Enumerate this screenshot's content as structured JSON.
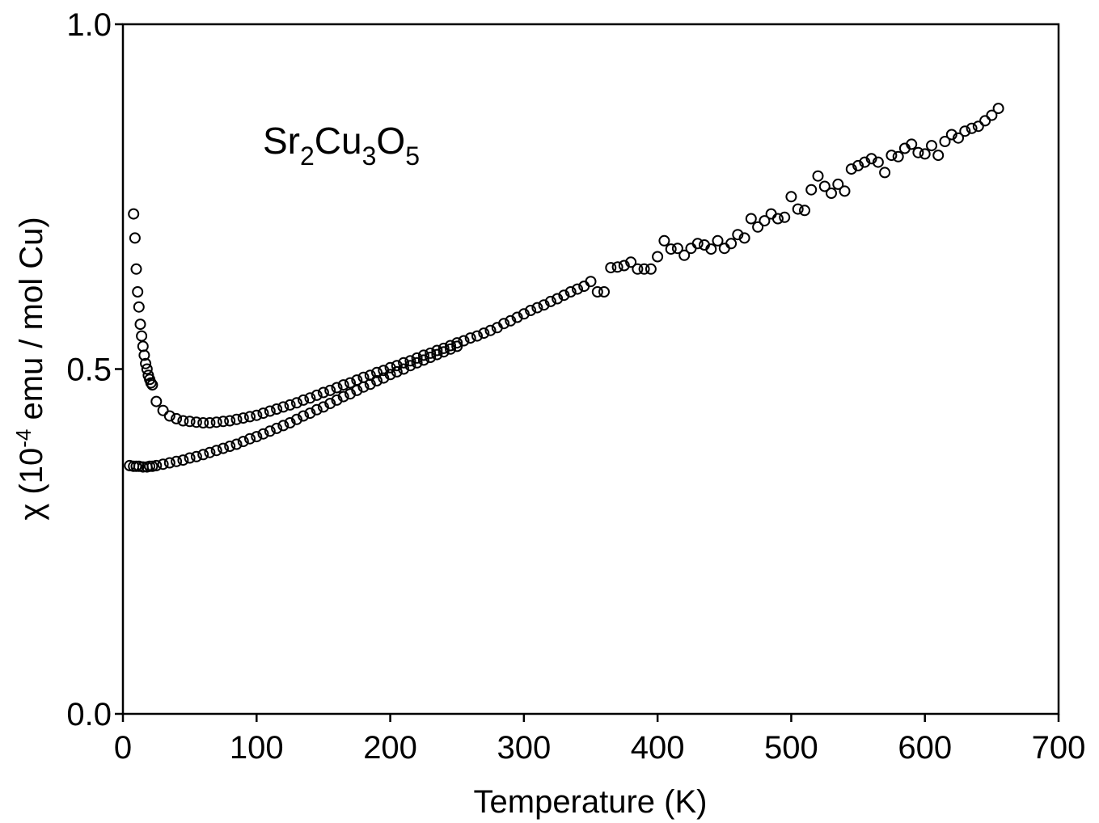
{
  "chart_data": {
    "type": "scatter",
    "title": "",
    "annotation": {
      "parts": [
        "Sr",
        "2",
        "Cu",
        "3",
        "O",
        "5"
      ]
    },
    "xlabel": "Temperature (K)",
    "ylabel": "χ (10-4 emu / mol Cu)",
    "ylabel_parts": {
      "prefix": "χ (10",
      "sup": "-4",
      "suffix": " emu / mol Cu)"
    },
    "xlim": [
      0,
      700
    ],
    "ylim": [
      0,
      1.0
    ],
    "xticks": [
      0,
      100,
      200,
      300,
      400,
      500,
      600,
      700
    ],
    "xtick_labels": [
      "0",
      "100",
      "200",
      "300",
      "400",
      "500",
      "600",
      "700"
    ],
    "yticks": [
      0.0,
      0.5,
      1.0
    ],
    "ytick_labels": [
      "0.0",
      "0.5",
      "1.0"
    ],
    "grid": false,
    "legend": "none",
    "marker": "open-circle",
    "series": [
      {
        "x": [
          8,
          9,
          10,
          11,
          12,
          13,
          14,
          15,
          16,
          17,
          18,
          19,
          20,
          21,
          22,
          25,
          30,
          35,
          40,
          45,
          50,
          55,
          60,
          65,
          70,
          75,
          80,
          85,
          90,
          95,
          100,
          105,
          110,
          115,
          120,
          125,
          130,
          135,
          140,
          145,
          150,
          155,
          160,
          165,
          170,
          175,
          180,
          185,
          190,
          195,
          200,
          205,
          210,
          215,
          220,
          225,
          230,
          235,
          240,
          245,
          250,
          255,
          260,
          265,
          270,
          275,
          280,
          285,
          290,
          295,
          300,
          305,
          310,
          315,
          320,
          325,
          330,
          335,
          340,
          345,
          350,
          355,
          360,
          365,
          370,
          375,
          380,
          385,
          390,
          395,
          400,
          405,
          410,
          415,
          420,
          425,
          430,
          435,
          440,
          445,
          450,
          455,
          460,
          465,
          470,
          475,
          480,
          485,
          490,
          495,
          500,
          505,
          510,
          515,
          520,
          525,
          530,
          535,
          540,
          545,
          550,
          555,
          560,
          565,
          570,
          575,
          580,
          585,
          590,
          595,
          600,
          605,
          610,
          615,
          620,
          625,
          630,
          635,
          640,
          645,
          650,
          655
        ],
        "y": [
          0.725,
          0.69,
          0.645,
          0.612,
          0.59,
          0.565,
          0.548,
          0.533,
          0.52,
          0.508,
          0.5,
          0.491,
          0.485,
          0.48,
          0.477,
          0.453,
          0.44,
          0.432,
          0.428,
          0.425,
          0.424,
          0.423,
          0.422,
          0.422,
          0.423,
          0.424,
          0.425,
          0.427,
          0.429,
          0.431,
          0.433,
          0.436,
          0.439,
          0.442,
          0.445,
          0.448,
          0.451,
          0.455,
          0.458,
          0.462,
          0.466,
          0.469,
          0.473,
          0.477,
          0.48,
          0.484,
          0.488,
          0.491,
          0.495,
          0.498,
          0.502,
          0.505,
          0.509,
          0.512,
          0.516,
          0.52,
          0.523,
          0.527,
          0.53,
          0.534,
          0.538,
          0.541,
          0.545,
          0.548,
          0.552,
          0.556,
          0.56,
          0.566,
          0.57,
          0.575,
          0.58,
          0.585,
          0.589,
          0.593,
          0.598,
          0.602,
          0.607,
          0.612,
          0.616,
          0.62,
          0.627,
          0.612,
          0.612,
          0.647,
          0.648,
          0.65,
          0.655,
          0.645,
          0.645,
          0.645,
          0.663,
          0.686,
          0.674,
          0.675,
          0.665,
          0.675,
          0.682,
          0.68,
          0.674,
          0.686,
          0.675,
          0.682,
          0.695,
          0.69,
          0.718,
          0.706,
          0.715,
          0.725,
          0.718,
          0.72,
          0.75,
          0.732,
          0.73,
          0.76,
          0.78,
          0.765,
          0.755,
          0.768,
          0.758,
          0.79,
          0.795,
          0.8,
          0.805,
          0.8,
          0.785,
          0.81,
          0.808,
          0.82,
          0.826,
          0.814,
          0.812,
          0.824,
          0.81,
          0.83,
          0.84,
          0.835,
          0.845,
          0.849,
          0.852,
          0.86,
          0.868,
          0.878
        ]
      },
      {
        "x": [
          5,
          8,
          10,
          12,
          15,
          18,
          20,
          22,
          25,
          30,
          35,
          40,
          45,
          50,
          55,
          60,
          65,
          70,
          75,
          80,
          85,
          90,
          95,
          100,
          105,
          110,
          115,
          120,
          125,
          130,
          135,
          140,
          145,
          150,
          155,
          160,
          165,
          170,
          175,
          180,
          185,
          190,
          195,
          200,
          205,
          210,
          215,
          220,
          225,
          230,
          235,
          240,
          245,
          250
        ],
        "y": [
          0.36,
          0.359,
          0.359,
          0.359,
          0.358,
          0.358,
          0.359,
          0.359,
          0.36,
          0.362,
          0.364,
          0.366,
          0.368,
          0.371,
          0.373,
          0.376,
          0.379,
          0.382,
          0.385,
          0.388,
          0.391,
          0.395,
          0.399,
          0.402,
          0.406,
          0.41,
          0.414,
          0.418,
          0.422,
          0.427,
          0.432,
          0.436,
          0.441,
          0.445,
          0.45,
          0.455,
          0.46,
          0.464,
          0.469,
          0.474,
          0.478,
          0.483,
          0.487,
          0.492,
          0.496,
          0.5,
          0.505,
          0.509,
          0.513,
          0.517,
          0.521,
          0.525,
          0.529,
          0.533
        ]
      }
    ]
  }
}
